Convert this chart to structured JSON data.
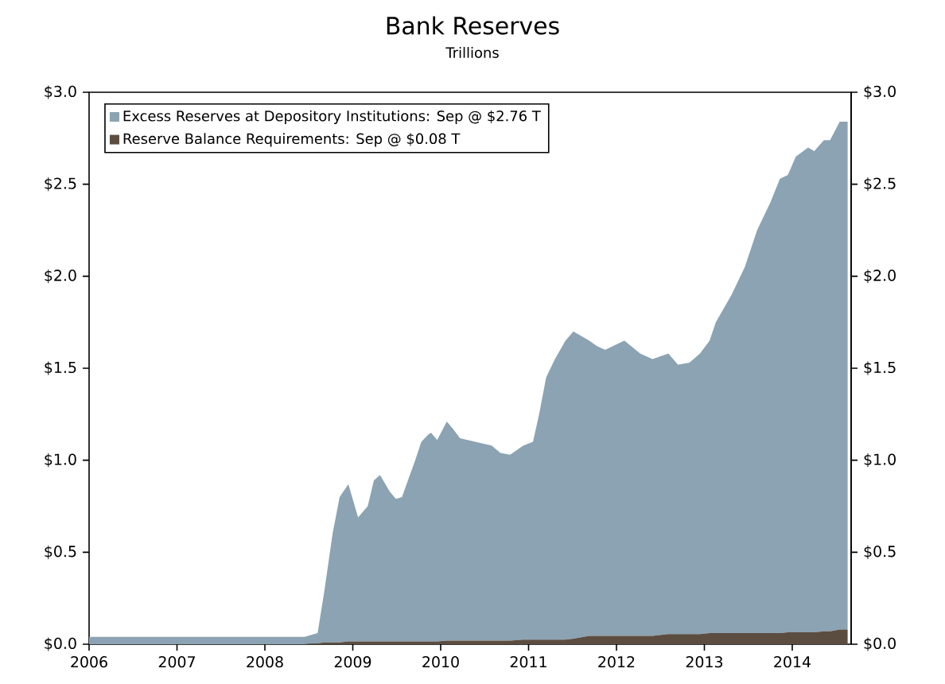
{
  "chart_data": {
    "type": "area",
    "title": "Bank Reserves",
    "subtitle": "Trillions",
    "stacked": true,
    "legend": "top left",
    "grid": false,
    "x": [
      2006.0,
      2007.0,
      2008.0,
      2008.45,
      2008.6,
      2008.68,
      2008.77,
      2008.85,
      2008.95,
      2009.06,
      2009.17,
      2009.24,
      2009.31,
      2009.42,
      2009.49,
      2009.56,
      2009.71,
      2009.78,
      2009.86,
      2009.89,
      2009.96,
      2010.07,
      2010.14,
      2010.22,
      2010.4,
      2010.58,
      2010.68,
      2010.79,
      2010.94,
      2011.05,
      2011.12,
      2011.2,
      2011.3,
      2011.42,
      2011.51,
      2011.69,
      2011.78,
      2011.87,
      2012.09,
      2012.27,
      2012.41,
      2012.59,
      2012.7,
      2012.83,
      2012.95,
      2013.06,
      2013.13,
      2013.31,
      2013.46,
      2013.6,
      2013.75,
      2013.86,
      2013.95,
      2014.04,
      2014.18,
      2014.25,
      2014.36,
      2014.43,
      2014.54,
      2014.63
    ],
    "series": [
      {
        "name": "Reserve Balance Requirements: Sep @ $0.08 T",
        "color": "#5c4d41",
        "values": [
          0,
          0,
          0,
          0,
          0.005,
          0.01,
          0.01,
          0.01,
          0.015,
          0.015,
          0.015,
          0.015,
          0.015,
          0.015,
          0.015,
          0.015,
          0.015,
          0.015,
          0.015,
          0.015,
          0.015,
          0.02,
          0.02,
          0.02,
          0.02,
          0.02,
          0.02,
          0.02,
          0.025,
          0.025,
          0.025,
          0.025,
          0.025,
          0.025,
          0.03,
          0.045,
          0.045,
          0.045,
          0.045,
          0.045,
          0.045,
          0.055,
          0.055,
          0.055,
          0.055,
          0.06,
          0.06,
          0.06,
          0.06,
          0.06,
          0.06,
          0.06,
          0.065,
          0.065,
          0.065,
          0.065,
          0.07,
          0.07,
          0.08,
          0.08
        ]
      },
      {
        "name": "Excess Reserves at Depository Institutions: Sep @ $2.76 T",
        "color": "#8ba3b2",
        "values": [
          0.04,
          0.04,
          0.04,
          0.04,
          0.055,
          0.29,
          0.59,
          0.79,
          0.855,
          0.675,
          0.735,
          0.875,
          0.905,
          0.815,
          0.775,
          0.785,
          0.985,
          1.085,
          1.125,
          1.135,
          1.095,
          1.19,
          1.15,
          1.1,
          1.08,
          1.06,
          1.02,
          1.01,
          1.055,
          1.075,
          1.225,
          1.425,
          1.525,
          1.625,
          1.67,
          1.605,
          1.575,
          1.555,
          1.605,
          1.535,
          1.505,
          1.525,
          1.465,
          1.475,
          1.525,
          1.59,
          1.69,
          1.84,
          1.99,
          2.19,
          2.34,
          2.47,
          2.485,
          2.585,
          2.635,
          2.615,
          2.67,
          2.67,
          2.76,
          2.76
        ]
      }
    ],
    "xlim": [
      2006,
      2014.67
    ],
    "xticks": [
      2006,
      2007,
      2008,
      2009,
      2010,
      2011,
      2012,
      2013,
      2014
    ],
    "ylim": [
      0,
      3
    ],
    "yticks": [
      {
        "value": 0,
        "label": "$0.0"
      },
      {
        "value": 0.5,
        "label": "$0.5"
      },
      {
        "value": 1,
        "label": "$1.0"
      },
      {
        "value": 1.5,
        "label": "$1.5"
      },
      {
        "value": 2,
        "label": "$2.0"
      },
      {
        "value": 2.5,
        "label": "$2.5"
      },
      {
        "value": 3,
        "label": "$3.0"
      }
    ],
    "y2lim": [
      0,
      3
    ],
    "y2ticks": [
      {
        "value": 0,
        "label": "$0.0"
      },
      {
        "value": 0.5,
        "label": "$0.5"
      },
      {
        "value": 1,
        "label": "$1.0"
      },
      {
        "value": 1.5,
        "label": "$1.5"
      },
      {
        "value": 2,
        "label": "$2.0"
      },
      {
        "value": 2.5,
        "label": "$2.5"
      },
      {
        "value": 3,
        "label": "$3.0"
      }
    ]
  }
}
